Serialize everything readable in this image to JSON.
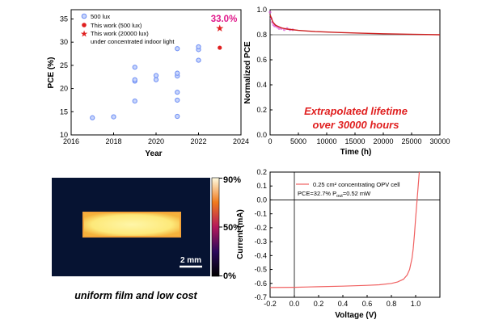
{
  "chart_data": [
    {
      "type": "scatter",
      "xlabel": "Year",
      "ylabel": "PCE (%)",
      "xlim": [
        2016,
        2024
      ],
      "ylim": [
        10,
        37
      ],
      "xticks": [
        "2016",
        "2018",
        "2020",
        "2022",
        "2024"
      ],
      "yticks": [
        "10",
        "15",
        "20",
        "25",
        "30",
        "35"
      ],
      "legend": [
        {
          "label": "500 lux",
          "marker": "open-circle"
        },
        {
          "label": "This work (500 lux)",
          "marker": "filled-circle"
        },
        {
          "label": "This work (20000 lux)",
          "marker": "star"
        },
        {
          "label": "under concentrated indoor light",
          "marker": "none"
        }
      ],
      "annotation": "33.0%",
      "series": [
        {
          "name": "500 lux",
          "color": "#6b8cf5",
          "points": [
            [
              2017,
              13.7
            ],
            [
              2018,
              13.9
            ],
            [
              2019,
              17.3
            ],
            [
              2019,
              21.6
            ],
            [
              2019,
              21.9
            ],
            [
              2019,
              24.6
            ],
            [
              2020,
              21.9
            ],
            [
              2020,
              22.8
            ],
            [
              2021,
              14.0
            ],
            [
              2021,
              17.5
            ],
            [
              2021,
              19.2
            ],
            [
              2021,
              22.7
            ],
            [
              2021,
              23.3
            ],
            [
              2021,
              28.6
            ],
            [
              2022,
              26.1
            ],
            [
              2022,
              28.4
            ],
            [
              2022,
              29.0
            ]
          ]
        },
        {
          "name": "This work (500 lux)",
          "color": "#e02020",
          "points": [
            [
              2023,
              28.8
            ]
          ]
        },
        {
          "name": "This work (20000 lux)",
          "color": "#e02020",
          "points": [
            [
              2023,
              33.0
            ]
          ]
        }
      ]
    },
    {
      "type": "line",
      "xlabel": "Time (h)",
      "ylabel": "Normalized PCE",
      "xlim": [
        0,
        30000
      ],
      "ylim": [
        0,
        1.0
      ],
      "xticks": [
        "0",
        "5000",
        "10000",
        "15000",
        "20000",
        "25000",
        "30000"
      ],
      "yticks": [
        "0.0",
        "0.2",
        "0.4",
        "0.6",
        "0.8",
        "1.0"
      ],
      "reference_line": 0.8,
      "annotation_line1": "Extrapolated lifetime",
      "annotation_line2": "over 30000 hours",
      "series": [
        {
          "name": "measured",
          "color": "#e05fd6",
          "x": [
            0,
            200,
            400,
            600,
            800,
            1000,
            1300,
            1600,
            2000,
            2500,
            3000,
            3500,
            4000
          ],
          "y": [
            0.98,
            0.93,
            0.9,
            0.88,
            0.87,
            0.87,
            0.86,
            0.85,
            0.85,
            0.84,
            0.85,
            0.84,
            0.84
          ]
        },
        {
          "name": "fit",
          "color": "#cc1f1f",
          "x": [
            0,
            500,
            1000,
            2000,
            3000,
            5000,
            8000,
            12000,
            16000,
            20000,
            25000,
            30000
          ],
          "y": [
            0.96,
            0.9,
            0.875,
            0.855,
            0.845,
            0.835,
            0.825,
            0.818,
            0.812,
            0.808,
            0.804,
            0.8
          ]
        }
      ]
    },
    {
      "type": "heatmap",
      "colorbar_ticks": [
        "90%",
        "50%",
        "0%"
      ],
      "scalebar_label": "2 mm",
      "caption": "uniform film and low cost"
    },
    {
      "type": "line",
      "xlabel": "Voltage (V)",
      "ylabel": "Current (mA)",
      "xlim": [
        -0.2,
        1.2
      ],
      "ylim": [
        -0.7,
        0.2
      ],
      "xticks": [
        "-0.2",
        "0.0",
        "0.2",
        "0.4",
        "0.6",
        "0.8",
        "1.0"
      ],
      "yticks": [
        "0.2",
        "0.1",
        "0.0",
        "-0.1",
        "-0.2",
        "-0.3",
        "-0.4",
        "-0.5",
        "-0.6",
        "-0.7"
      ],
      "legend_line1": "0.25 cm² concentrating OPV cell",
      "legend_line2": "PCE=32.7% P",
      "legend_sub": "out",
      "legend_tail": "=0.52 mW",
      "series": [
        {
          "name": "J-V",
          "color": "#f06060",
          "x": [
            -0.2,
            0.0,
            0.2,
            0.4,
            0.6,
            0.7,
            0.8,
            0.85,
            0.9,
            0.93,
            0.95,
            0.97,
            0.98,
            0.99,
            1.0,
            1.01,
            1.02,
            1.03
          ],
          "y": [
            -0.63,
            -0.628,
            -0.624,
            -0.62,
            -0.614,
            -0.61,
            -0.6,
            -0.59,
            -0.57,
            -0.54,
            -0.5,
            -0.42,
            -0.35,
            -0.25,
            -0.13,
            -0.02,
            0.09,
            0.2
          ]
        }
      ]
    }
  ]
}
